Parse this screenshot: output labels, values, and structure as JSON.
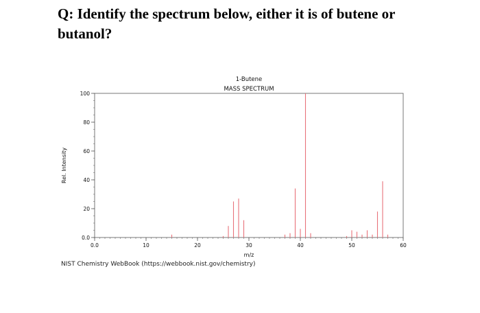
{
  "question": "Q: Identify the spectrum below, either it is of butene or butanol?",
  "credit": "NIST Chemistry WebBook (https://webbook.nist.gov/chemistry)",
  "chart_data": {
    "type": "bar",
    "title": "1-Butene",
    "subtitle": "MASS SPECTRUM",
    "xlabel": "m/z",
    "ylabel": "Rel. Intensity",
    "xlim": [
      0,
      60
    ],
    "ylim": [
      0,
      100
    ],
    "xticks": [
      0,
      10,
      20,
      30,
      40,
      50,
      60
    ],
    "xtick_labels": [
      "0.0",
      "10",
      "20",
      "30",
      "40",
      "50",
      "60"
    ],
    "yticks": [
      0,
      20,
      40,
      60,
      80,
      100
    ],
    "ytick_labels": [
      "0.0",
      "20",
      "40",
      "60",
      "80",
      "100"
    ],
    "grid": false,
    "bar_color": "#e8727a",
    "peaks": [
      {
        "mz": 15,
        "intensity": 2
      },
      {
        "mz": 25,
        "intensity": 1
      },
      {
        "mz": 26,
        "intensity": 8
      },
      {
        "mz": 27,
        "intensity": 25
      },
      {
        "mz": 28,
        "intensity": 27
      },
      {
        "mz": 29,
        "intensity": 12
      },
      {
        "mz": 37,
        "intensity": 2
      },
      {
        "mz": 38,
        "intensity": 3
      },
      {
        "mz": 39,
        "intensity": 34
      },
      {
        "mz": 40,
        "intensity": 6
      },
      {
        "mz": 41,
        "intensity": 100
      },
      {
        "mz": 42,
        "intensity": 3
      },
      {
        "mz": 49,
        "intensity": 1
      },
      {
        "mz": 50,
        "intensity": 5
      },
      {
        "mz": 51,
        "intensity": 4
      },
      {
        "mz": 52,
        "intensity": 2
      },
      {
        "mz": 53,
        "intensity": 5
      },
      {
        "mz": 54,
        "intensity": 2
      },
      {
        "mz": 55,
        "intensity": 18
      },
      {
        "mz": 56,
        "intensity": 39
      },
      {
        "mz": 57,
        "intensity": 2
      }
    ]
  }
}
